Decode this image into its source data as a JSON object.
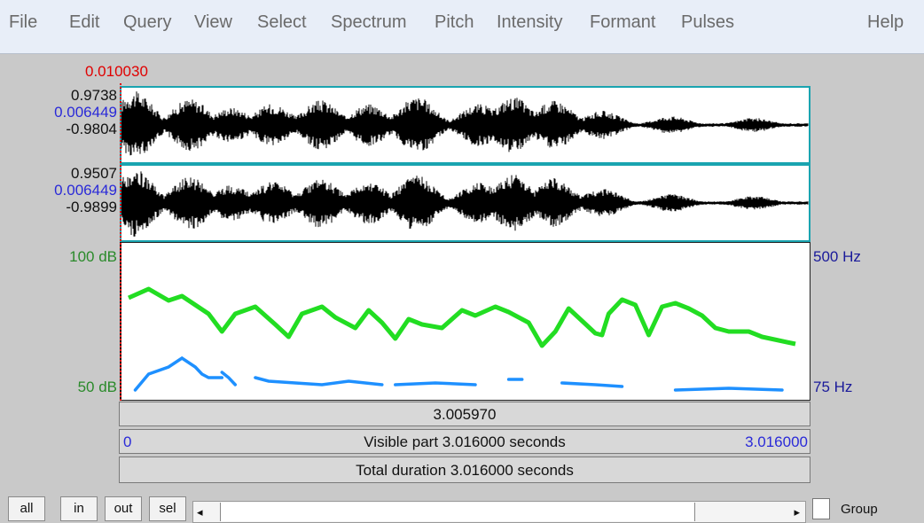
{
  "menu": {
    "items": [
      "File",
      "Edit",
      "Query",
      "View",
      "Select",
      "Spectrum",
      "Pitch",
      "Intensity",
      "Formant",
      "Pulses"
    ],
    "help": "Help"
  },
  "cursor": {
    "time": "0.010030"
  },
  "channel1": {
    "max": "0.9738",
    "cursor_value": "0.006449",
    "min": "-0.9804"
  },
  "channel2": {
    "max": "0.9507",
    "cursor_value": "0.006449",
    "min": "-0.9899"
  },
  "analysis": {
    "intensity_top": "100 dB",
    "intensity_bottom": "50 dB",
    "pitch_top": "500 Hz",
    "pitch_bottom": "75 Hz"
  },
  "bars": {
    "cursor_time": "3.005970",
    "visible_start": "0",
    "visible_label": "Visible part 3.016000 seconds",
    "visible_end": "3.016000",
    "total_label": "Total duration 3.016000 seconds"
  },
  "buttons": {
    "all": "all",
    "in": "in",
    "out": "out",
    "sel": "sel",
    "group": "Group"
  },
  "colors": {
    "intensity": "#22dd22",
    "pitch": "#1e90ff",
    "waveform": "#000000",
    "panel_border": "#1aa4b0"
  }
}
